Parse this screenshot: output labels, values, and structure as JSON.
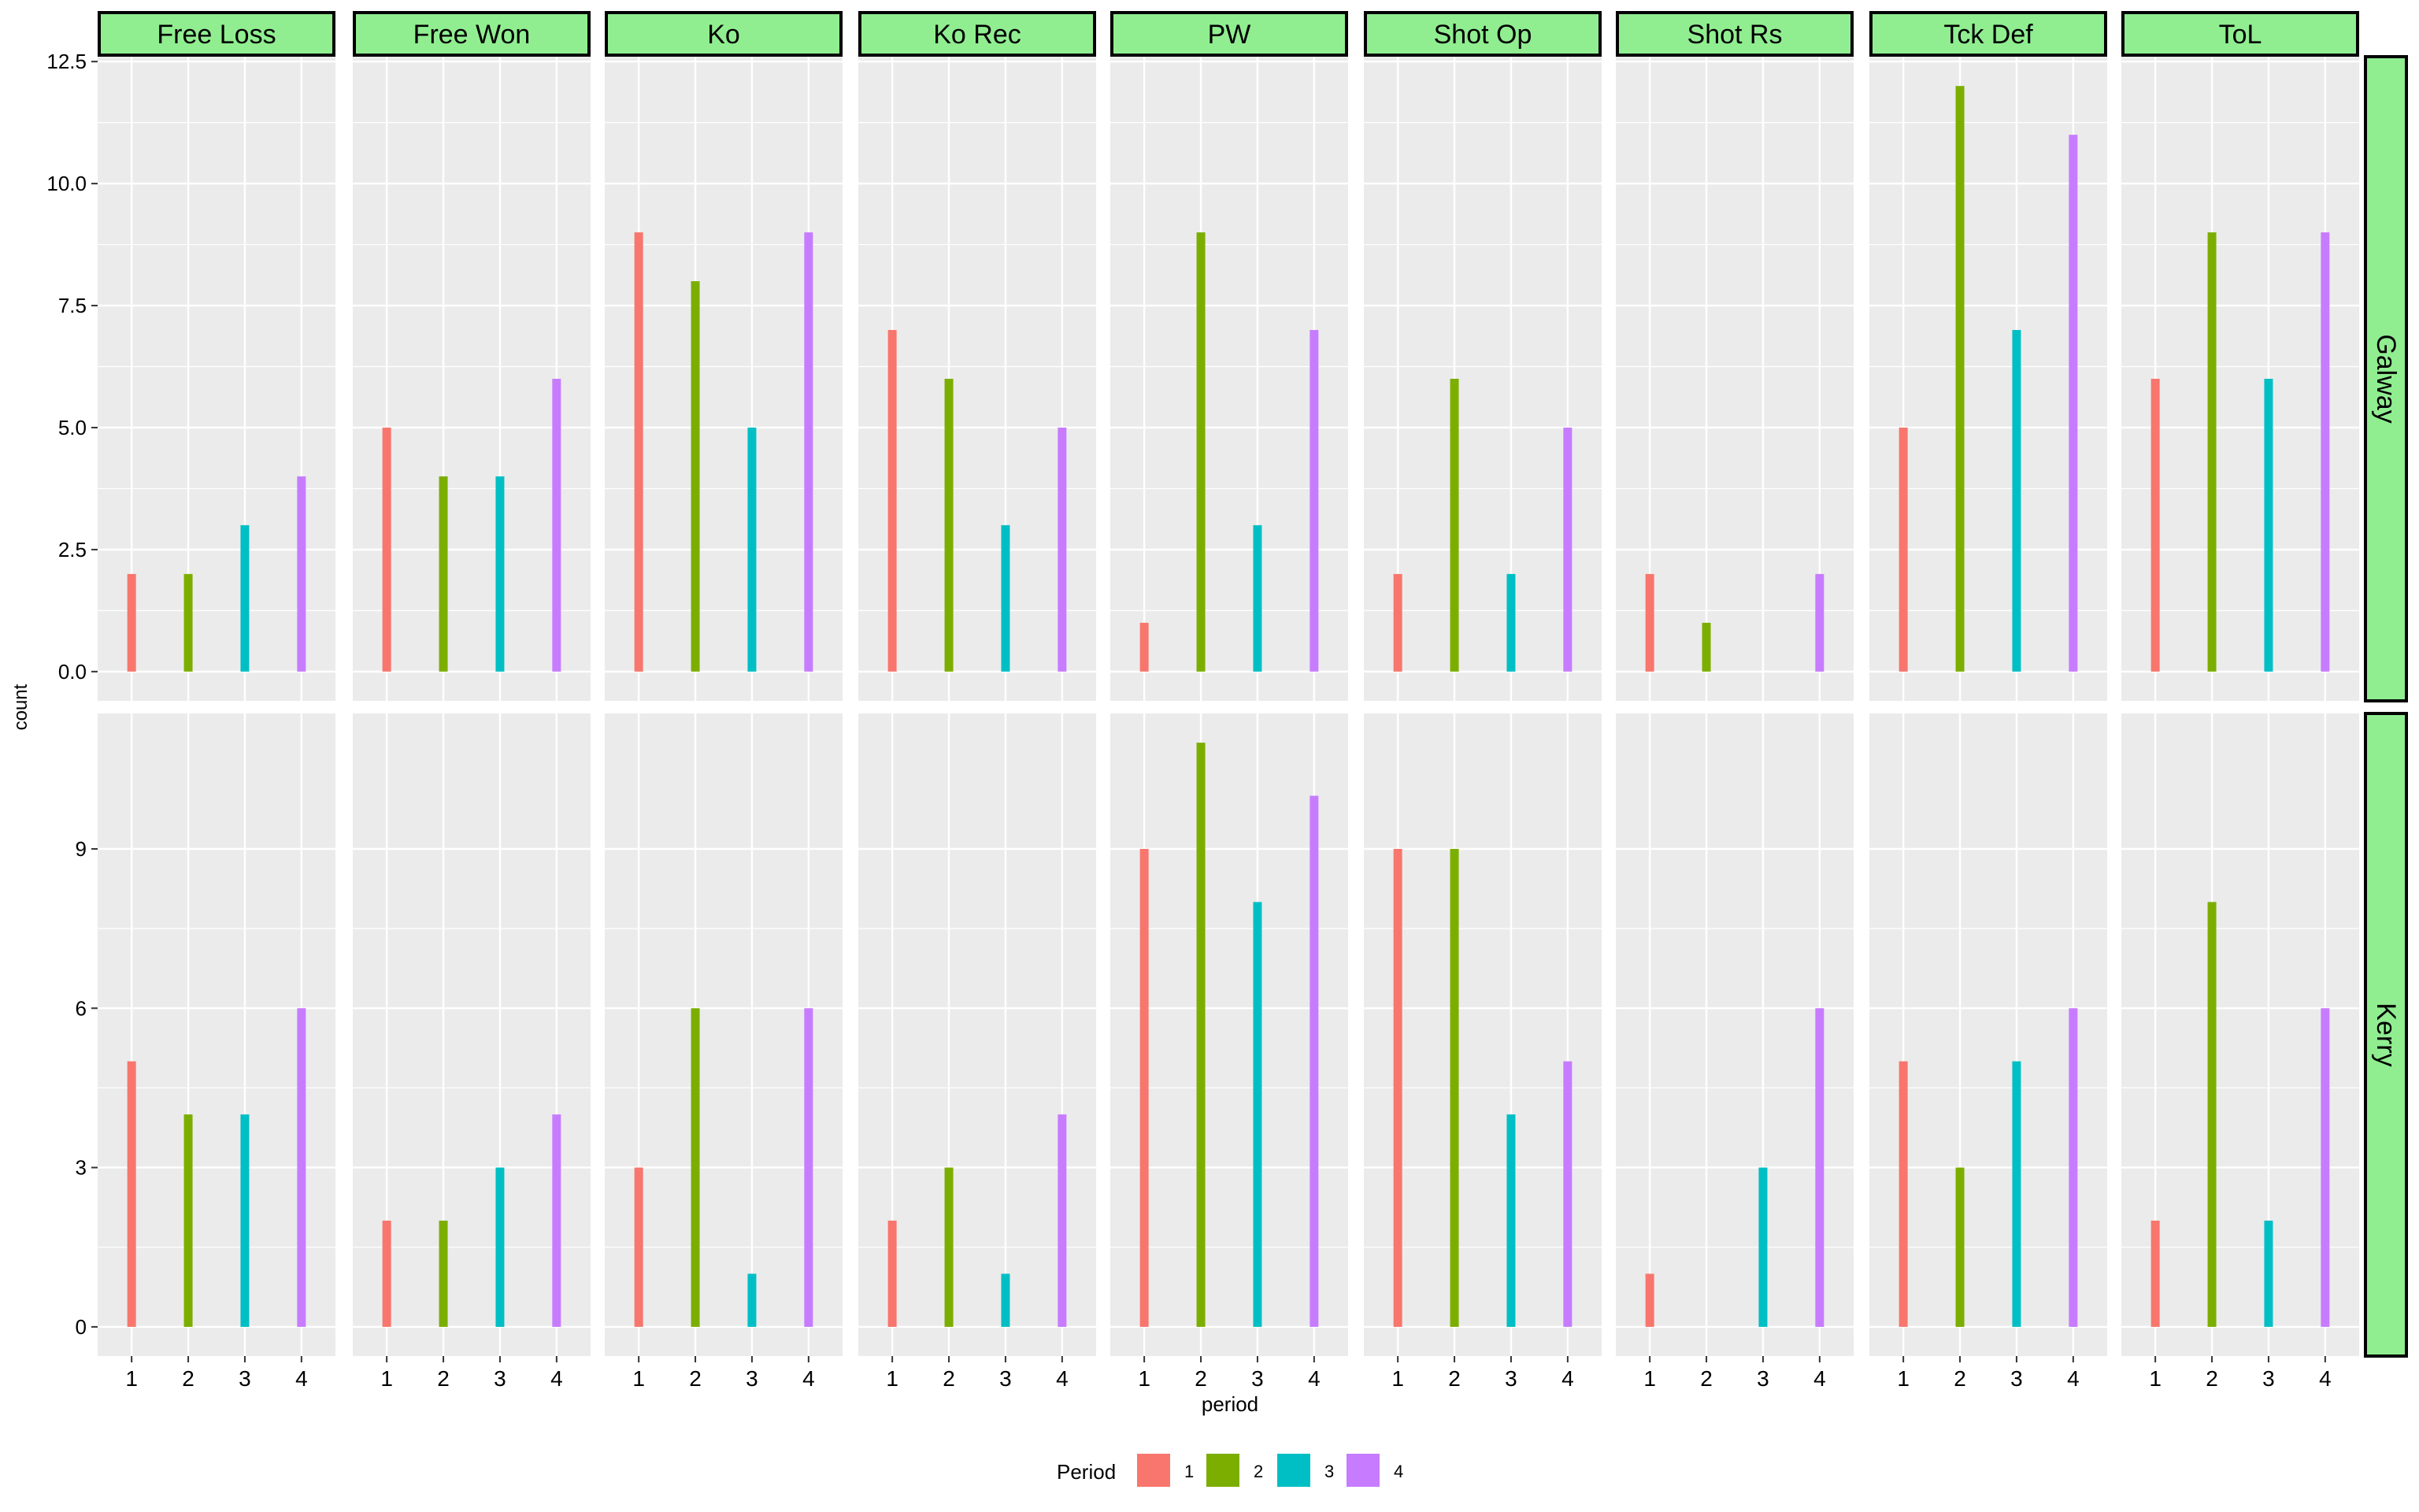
{
  "chart_data": {
    "type": "bar",
    "facet_columns": [
      "Free Loss",
      "Free Won",
      "Ko",
      "Ko Rec",
      "PW",
      "Shot Op",
      "Shot Rs",
      "Tck Def",
      "ToL"
    ],
    "facet_rows": [
      "Galway",
      "Kerry"
    ],
    "xlabel": "period",
    "ylabel": "count",
    "x_ticks": [
      "1",
      "2",
      "3",
      "4"
    ],
    "rows": {
      "Galway": {
        "ylim": [
          -0.6,
          12.6
        ],
        "y_ticks": [
          0,
          2.5,
          5,
          7.5,
          10,
          12.5
        ],
        "y_tick_labels": [
          "0.0",
          "2.5",
          "5.0",
          "7.5",
          "10.0",
          "12.5"
        ],
        "values": {
          "Free Loss": [
            2,
            2,
            3,
            4
          ],
          "Free Won": [
            5,
            4,
            4,
            6
          ],
          "Ko": [
            9,
            8,
            5,
            9
          ],
          "Ko Rec": [
            7,
            6,
            3,
            5
          ],
          "PW": [
            1,
            9,
            3,
            7
          ],
          "Shot Op": [
            2,
            6,
            2,
            5
          ],
          "Shot Rs": [
            2,
            1,
            0,
            2
          ],
          "Tck Def": [
            5,
            12,
            7,
            11
          ],
          "ToL": [
            6,
            9,
            6,
            9
          ]
        }
      },
      "Kerry": {
        "ylim": [
          -0.55,
          11.55
        ],
        "y_ticks": [
          0,
          3,
          6,
          9
        ],
        "y_tick_labels": [
          "0",
          "3",
          "6",
          "9"
        ],
        "values": {
          "Free Loss": [
            5,
            4,
            4,
            6
          ],
          "Free Won": [
            2,
            2,
            3,
            4
          ],
          "Ko": [
            3,
            6,
            1,
            6
          ],
          "Ko Rec": [
            2,
            3,
            1,
            4
          ],
          "PW": [
            9,
            11,
            8,
            10
          ],
          "Shot Op": [
            9,
            9,
            4,
            5
          ],
          "Shot Rs": [
            1,
            0,
            3,
            6
          ],
          "Tck Def": [
            5,
            3,
            5,
            6
          ],
          "ToL": [
            2,
            8,
            2,
            6
          ]
        }
      }
    },
    "legend": {
      "title": "Period",
      "position": "bottom",
      "items": [
        {
          "label": "1",
          "color": "#F8766D"
        },
        {
          "label": "2",
          "color": "#7CAE00"
        },
        {
          "label": "3",
          "color": "#00BFC4"
        },
        {
          "label": "4",
          "color": "#C77CFF"
        }
      ]
    },
    "strip_fill": "#90EE90",
    "panel_background": "#EBEBEB",
    "grid": true
  }
}
